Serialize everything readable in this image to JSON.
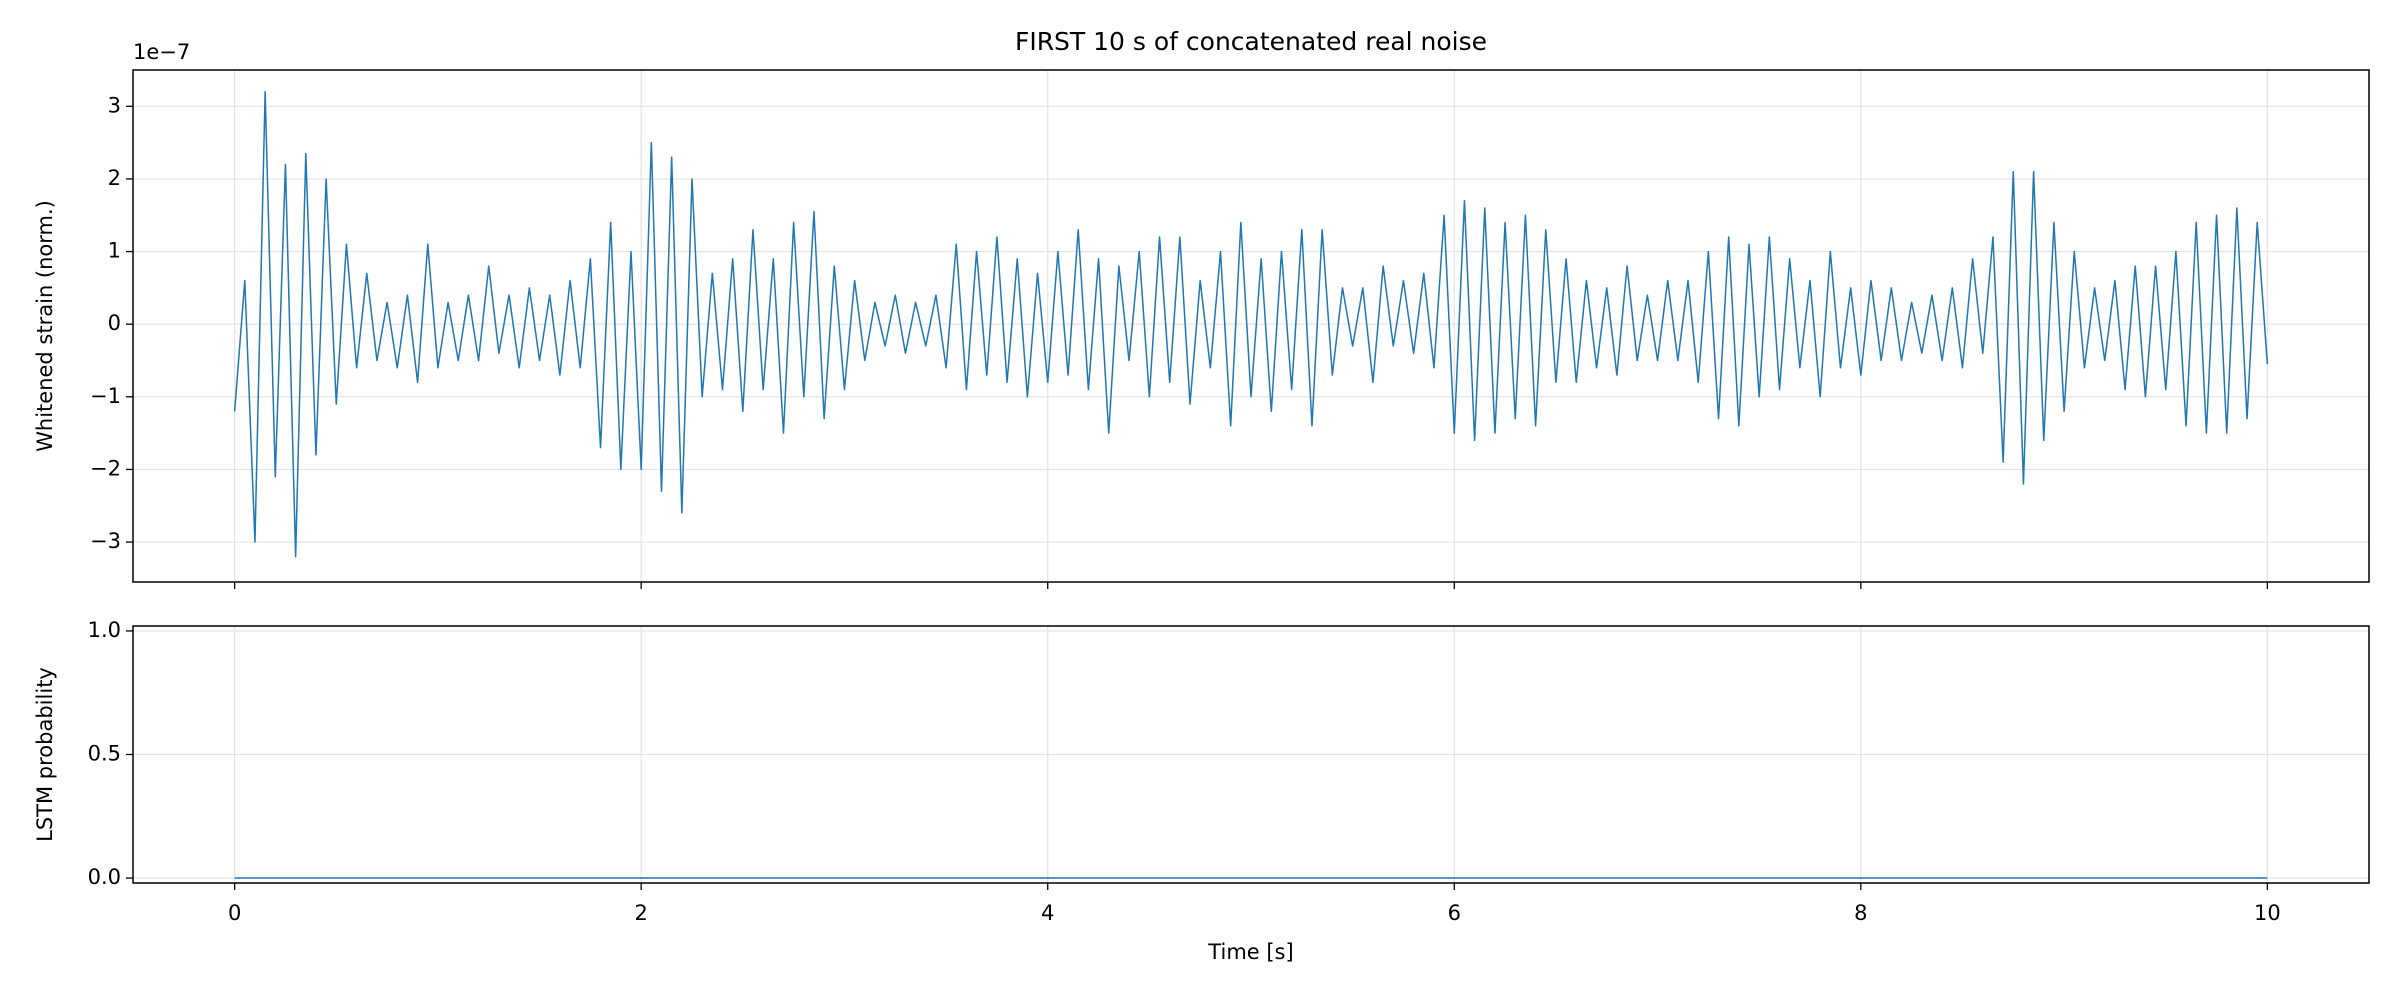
{
  "chart_data": [
    {
      "type": "line",
      "title": "FIRST 10 s of concatenated real noise",
      "ylabel": "Whitened strain (norm.)",
      "offset_text": "1e−7",
      "x": [
        0,
        0.05,
        0.1,
        0.15,
        0.2,
        0.25,
        0.3,
        0.35,
        0.4,
        0.45,
        0.5,
        0.55,
        0.6,
        0.65,
        0.7,
        0.75,
        0.8,
        0.85,
        0.9,
        0.95,
        1,
        1.05,
        1.1,
        1.15,
        1.2,
        1.25,
        1.3,
        1.35,
        1.4,
        1.45,
        1.5,
        1.55,
        1.6,
        1.65,
        1.7,
        1.75,
        1.8,
        1.85,
        1.9,
        1.95,
        2,
        2.05,
        2.1,
        2.15,
        2.2,
        2.25,
        2.3,
        2.35,
        2.4,
        2.45,
        2.5,
        2.55,
        2.6,
        2.65,
        2.7,
        2.75,
        2.8,
        2.85,
        2.9,
        2.95,
        3,
        3.05,
        3.1,
        3.15,
        3.2,
        3.25,
        3.3,
        3.35,
        3.4,
        3.45,
        3.5,
        3.55,
        3.6,
        3.65,
        3.7,
        3.75,
        3.8,
        3.85,
        3.9,
        3.95,
        4,
        4.05,
        4.1,
        4.15,
        4.2,
        4.25,
        4.3,
        4.35,
        4.4,
        4.45,
        4.5,
        4.55,
        4.6,
        4.65,
        4.7,
        4.75,
        4.8,
        4.85,
        4.9,
        4.95,
        5,
        5.05,
        5.1,
        5.15,
        5.2,
        5.25,
        5.3,
        5.35,
        5.4,
        5.45,
        5.5,
        5.55,
        5.6,
        5.65,
        5.7,
        5.75,
        5.8,
        5.85,
        5.9,
        5.95,
        6,
        6.05,
        6.1,
        6.15,
        6.2,
        6.25,
        6.3,
        6.35,
        6.4,
        6.45,
        6.5,
        6.55,
        6.6,
        6.65,
        6.7,
        6.75,
        6.8,
        6.85,
        6.9,
        6.95,
        7,
        7.05,
        7.1,
        7.15,
        7.2,
        7.25,
        7.3,
        7.35,
        7.4,
        7.45,
        7.5,
        7.55,
        7.6,
        7.65,
        7.7,
        7.75,
        7.8,
        7.85,
        7.9,
        7.95,
        8,
        8.05,
        8.1,
        8.15,
        8.2,
        8.25,
        8.3,
        8.35,
        8.4,
        8.45,
        8.5,
        8.55,
        8.6,
        8.65,
        8.7,
        8.75,
        8.8,
        8.85,
        8.9,
        8.95,
        9,
        9.05,
        9.1,
        9.15,
        9.2,
        9.25,
        9.3,
        9.35,
        9.4,
        9.45,
        9.5,
        9.55,
        9.6,
        9.65,
        9.7,
        9.75,
        9.8,
        9.85,
        9.9,
        9.95,
        10
      ],
      "series": [
        {
          "color": "#1f77b4",
          "values": [
            -1.2,
            0.6,
            -3.0,
            3.2,
            -2.1,
            2.2,
            -3.2,
            2.35,
            -1.8,
            2.0,
            -1.1,
            1.1,
            -0.6,
            0.7,
            -0.5,
            0.3,
            -0.6,
            0.4,
            -0.8,
            1.1,
            -0.6,
            0.3,
            -0.5,
            0.4,
            -0.5,
            0.8,
            -0.4,
            0.4,
            -0.6,
            0.5,
            -0.5,
            0.4,
            -0.7,
            0.6,
            -0.6,
            0.9,
            -1.7,
            1.4,
            -2.0,
            1.0,
            -2.0,
            2.5,
            -2.3,
            2.3,
            -2.6,
            2.0,
            -1.0,
            0.7,
            -0.9,
            0.9,
            -1.2,
            1.3,
            -0.9,
            0.9,
            -1.5,
            1.4,
            -1.0,
            1.55,
            -1.3,
            0.8,
            -0.9,
            0.6,
            -0.5,
            0.3,
            -0.3,
            0.4,
            -0.4,
            0.3,
            -0.3,
            0.4,
            -0.6,
            1.1,
            -0.9,
            1.0,
            -0.7,
            1.2,
            -0.8,
            0.9,
            -1.0,
            0.7,
            -0.8,
            1.0,
            -0.7,
            1.3,
            -0.9,
            0.9,
            -1.5,
            0.8,
            -0.5,
            1.0,
            -1.0,
            1.2,
            -0.8,
            1.2,
            -1.1,
            0.6,
            -0.6,
            1.0,
            -1.4,
            1.4,
            -1.0,
            0.9,
            -1.2,
            1.0,
            -0.9,
            1.3,
            -1.4,
            1.3,
            -0.7,
            0.5,
            -0.3,
            0.5,
            -0.8,
            0.8,
            -0.3,
            0.6,
            -0.4,
            0.7,
            -0.6,
            1.5,
            -1.5,
            1.7,
            -1.6,
            1.6,
            -1.5,
            1.4,
            -1.3,
            1.5,
            -1.4,
            1.3,
            -0.8,
            0.9,
            -0.8,
            0.6,
            -0.6,
            0.5,
            -0.7,
            0.8,
            -0.5,
            0.4,
            -0.5,
            0.6,
            -0.5,
            0.6,
            -0.8,
            1.0,
            -1.3,
            1.2,
            -1.4,
            1.1,
            -1.0,
            1.2,
            -0.9,
            0.9,
            -0.6,
            0.6,
            -1.0,
            1.0,
            -0.6,
            0.5,
            -0.7,
            0.6,
            -0.5,
            0.5,
            -0.5,
            0.3,
            -0.4,
            0.4,
            -0.5,
            0.5,
            -0.6,
            0.9,
            -0.4,
            1.2,
            -1.9,
            2.1,
            -2.2,
            2.1,
            -1.6,
            1.4,
            -1.2,
            1.0,
            -0.6,
            0.5,
            -0.5,
            0.6,
            -0.9,
            0.8,
            -1.0,
            0.8,
            -0.9,
            1.0,
            -1.4,
            1.4,
            -1.5,
            1.5,
            -1.5,
            1.6,
            -1.3,
            1.4,
            -0.55
          ]
        }
      ],
      "xlim": [
        -0.5,
        10.5
      ],
      "ylim": [
        -3.55,
        3.5
      ],
      "xticks": [
        0,
        2,
        4,
        6,
        8,
        10
      ],
      "yticks": [
        {
          "value": -3,
          "label": "−3"
        },
        {
          "value": -2,
          "label": "−2"
        },
        {
          "value": -1,
          "label": "−1"
        },
        0,
        1,
        2,
        3
      ],
      "grid": true
    },
    {
      "type": "line",
      "xlabel": "Time [s]",
      "ylabel": "LSTM probability",
      "x": [
        0,
        10
      ],
      "series": [
        {
          "color": "#1f77b4",
          "values": [
            0,
            0
          ]
        }
      ],
      "xlim": [
        -0.5,
        10.5
      ],
      "ylim": [
        -0.02,
        1.02
      ],
      "xticks": [
        0,
        2,
        4,
        6,
        8,
        10
      ],
      "yticks": [
        {
          "value": 0,
          "label": "0.0"
        },
        {
          "value": 0.5,
          "label": "0.5"
        },
        {
          "value": 1,
          "label": "1.0"
        }
      ],
      "grid": true
    }
  ]
}
